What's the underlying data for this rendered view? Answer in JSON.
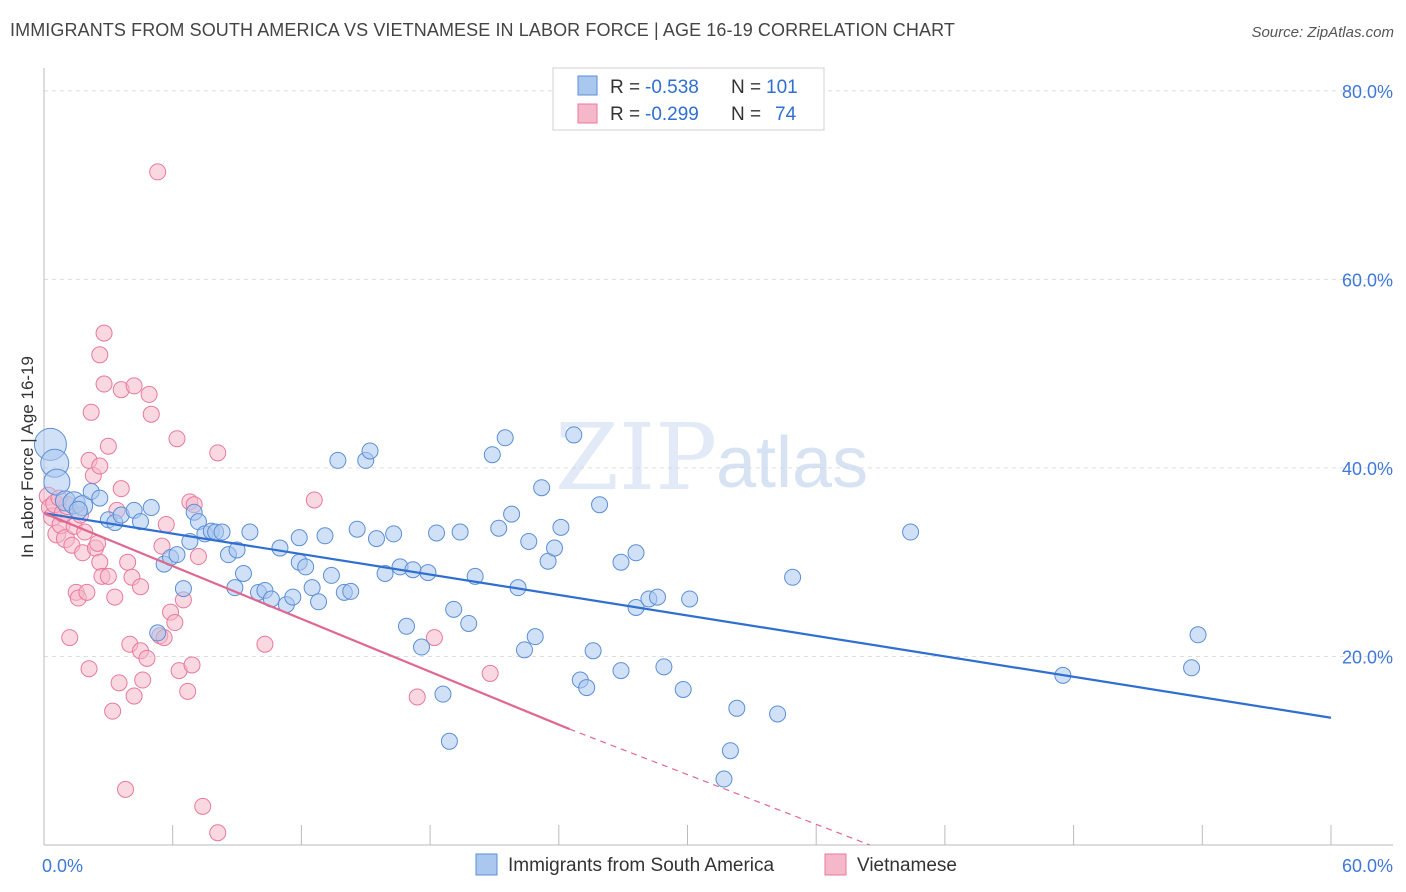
{
  "header": {
    "title": "IMMIGRANTS FROM SOUTH AMERICA VS VIETNAMESE IN LABOR FORCE | AGE 16-19 CORRELATION CHART",
    "source": "Source: ZipAtlas.com"
  },
  "watermark": {
    "zip": "ZIP",
    "atlas": "atlas"
  },
  "legend_box": {
    "rows": [
      {
        "r_label": "R =",
        "r_value": "-0.538",
        "n_label": "N =",
        "n_value": "101"
      },
      {
        "r_label": "R =",
        "r_value": "-0.299",
        "n_label": "N =",
        "n_value": "74"
      }
    ]
  },
  "bottom_legend": {
    "items": [
      {
        "label": "Immigrants from South America"
      },
      {
        "label": "Vietnamese"
      }
    ]
  },
  "colors": {
    "blue_fill": "#a9c7ef",
    "blue_stroke": "#5b8fd6",
    "blue_line": "#2f6fd0",
    "pink_fill": "#f5b8cb",
    "pink_stroke": "#e9799b",
    "pink_line": "#e06890",
    "tick_text": "#3f78d8",
    "grid": "#dddddd",
    "watermark": "#c9d9ef"
  },
  "chart_data": {
    "type": "scatter",
    "title": "IMMIGRANTS FROM SOUTH AMERICA VS VIETNAMESE IN LABOR FORCE | AGE 16-19 CORRELATION CHART",
    "xlabel": "",
    "ylabel": "In Labor Force | Age 16-19",
    "xlim": [
      0,
      60
    ],
    "ylim": [
      0,
      82
    ],
    "x_ticks": [
      0,
      6,
      12,
      18,
      24,
      30,
      36,
      42,
      48,
      54,
      60
    ],
    "x_tick_labels": [
      {
        "value": 0,
        "label": "0.0%"
      },
      {
        "value": 60,
        "label": "60.0%"
      }
    ],
    "y_ticks": [
      {
        "value": 20,
        "label": "20.0%"
      },
      {
        "value": 40,
        "label": "40.0%"
      },
      {
        "value": 60,
        "label": "60.0%"
      },
      {
        "value": 80,
        "label": "80.0%"
      }
    ],
    "series": [
      {
        "name": "Immigrants from South America",
        "r": -0.538,
        "n": 101,
        "trend": {
          "x": [
            0,
            60
          ],
          "y": [
            35.2,
            13.5
          ],
          "dashed_to": null
        },
        "points": [
          {
            "x": 0.3,
            "y": 42.5,
            "s": 16
          },
          {
            "x": 0.5,
            "y": 40.5,
            "s": 14
          },
          {
            "x": 0.6,
            "y": 38.5,
            "s": 13
          },
          {
            "x": 1.0,
            "y": 36.5,
            "s": 10
          },
          {
            "x": 1.4,
            "y": 36.3,
            "s": 11
          },
          {
            "x": 1.8,
            "y": 36.0,
            "s": 10
          },
          {
            "x": 1.6,
            "y": 35.5,
            "s": 9
          },
          {
            "x": 2.2,
            "y": 37.5,
            "s": 8
          },
          {
            "x": 2.6,
            "y": 36.8,
            "s": 8
          },
          {
            "x": 3.0,
            "y": 34.5,
            "s": 8
          },
          {
            "x": 3.3,
            "y": 34.2,
            "s": 8
          },
          {
            "x": 3.6,
            "y": 35.0,
            "s": 8
          },
          {
            "x": 4.2,
            "y": 35.5,
            "s": 8
          },
          {
            "x": 4.5,
            "y": 34.3,
            "s": 8
          },
          {
            "x": 5.0,
            "y": 35.8,
            "s": 8
          },
          {
            "x": 5.3,
            "y": 22.5,
            "s": 8
          },
          {
            "x": 5.6,
            "y": 29.8,
            "s": 8
          },
          {
            "x": 5.9,
            "y": 30.5,
            "s": 8
          },
          {
            "x": 6.2,
            "y": 30.8,
            "s": 8
          },
          {
            "x": 6.8,
            "y": 32.2,
            "s": 8
          },
          {
            "x": 6.5,
            "y": 27.2,
            "s": 8
          },
          {
            "x": 7.0,
            "y": 35.3,
            "s": 8
          },
          {
            "x": 7.2,
            "y": 34.3,
            "s": 8
          },
          {
            "x": 7.5,
            "y": 33.0,
            "s": 8
          },
          {
            "x": 7.8,
            "y": 33.3,
            "s": 8
          },
          {
            "x": 8.0,
            "y": 33.2,
            "s": 8
          },
          {
            "x": 8.3,
            "y": 33.2,
            "s": 8
          },
          {
            "x": 8.6,
            "y": 30.8,
            "s": 8
          },
          {
            "x": 8.9,
            "y": 27.3,
            "s": 8
          },
          {
            "x": 9.0,
            "y": 31.3,
            "s": 8
          },
          {
            "x": 9.3,
            "y": 28.8,
            "s": 8
          },
          {
            "x": 9.6,
            "y": 33.2,
            "s": 8
          },
          {
            "x": 10.0,
            "y": 26.8,
            "s": 8
          },
          {
            "x": 10.3,
            "y": 27.0,
            "s": 8
          },
          {
            "x": 10.6,
            "y": 26.1,
            "s": 8
          },
          {
            "x": 11.0,
            "y": 31.5,
            "s": 8
          },
          {
            "x": 11.3,
            "y": 25.5,
            "s": 8
          },
          {
            "x": 11.6,
            "y": 26.3,
            "s": 8
          },
          {
            "x": 11.9,
            "y": 30.0,
            "s": 8
          },
          {
            "x": 11.9,
            "y": 32.6,
            "s": 8
          },
          {
            "x": 12.2,
            "y": 29.5,
            "s": 8
          },
          {
            "x": 12.5,
            "y": 27.3,
            "s": 8
          },
          {
            "x": 12.8,
            "y": 25.8,
            "s": 8
          },
          {
            "x": 13.1,
            "y": 32.8,
            "s": 8
          },
          {
            "x": 13.4,
            "y": 28.6,
            "s": 8
          },
          {
            "x": 13.7,
            "y": 40.8,
            "s": 8
          },
          {
            "x": 14.0,
            "y": 26.8,
            "s": 8
          },
          {
            "x": 14.3,
            "y": 26.9,
            "s": 8
          },
          {
            "x": 14.6,
            "y": 33.5,
            "s": 8
          },
          {
            "x": 15.0,
            "y": 40.8,
            "s": 8
          },
          {
            "x": 15.2,
            "y": 41.8,
            "s": 8
          },
          {
            "x": 15.5,
            "y": 32.5,
            "s": 8
          },
          {
            "x": 15.9,
            "y": 28.8,
            "s": 8
          },
          {
            "x": 16.3,
            "y": 33.0,
            "s": 8
          },
          {
            "x": 16.6,
            "y": 29.5,
            "s": 8
          },
          {
            "x": 16.9,
            "y": 23.2,
            "s": 8
          },
          {
            "x": 17.2,
            "y": 29.2,
            "s": 8
          },
          {
            "x": 17.6,
            "y": 21.0,
            "s": 8
          },
          {
            "x": 17.9,
            "y": 28.9,
            "s": 8
          },
          {
            "x": 18.3,
            "y": 33.1,
            "s": 8
          },
          {
            "x": 18.6,
            "y": 16.0,
            "s": 8
          },
          {
            "x": 18.9,
            "y": 11.0,
            "s": 8
          },
          {
            "x": 19.1,
            "y": 25.0,
            "s": 8
          },
          {
            "x": 19.4,
            "y": 33.2,
            "s": 8
          },
          {
            "x": 19.8,
            "y": 23.5,
            "s": 8
          },
          {
            "x": 20.1,
            "y": 28.5,
            "s": 8
          },
          {
            "x": 20.9,
            "y": 41.4,
            "s": 8
          },
          {
            "x": 21.2,
            "y": 33.6,
            "s": 8
          },
          {
            "x": 21.5,
            "y": 43.2,
            "s": 8
          },
          {
            "x": 21.8,
            "y": 35.1,
            "s": 8
          },
          {
            "x": 22.1,
            "y": 27.3,
            "s": 8
          },
          {
            "x": 22.4,
            "y": 20.7,
            "s": 8
          },
          {
            "x": 22.6,
            "y": 32.2,
            "s": 8
          },
          {
            "x": 22.9,
            "y": 22.1,
            "s": 8
          },
          {
            "x": 23.2,
            "y": 37.9,
            "s": 8
          },
          {
            "x": 23.5,
            "y": 30.1,
            "s": 8
          },
          {
            "x": 23.8,
            "y": 31.5,
            "s": 8
          },
          {
            "x": 24.1,
            "y": 33.7,
            "s": 8
          },
          {
            "x": 24.7,
            "y": 43.5,
            "s": 8
          },
          {
            "x": 25.0,
            "y": 17.5,
            "s": 8
          },
          {
            "x": 25.3,
            "y": 16.7,
            "s": 8
          },
          {
            "x": 25.6,
            "y": 20.6,
            "s": 8
          },
          {
            "x": 25.9,
            "y": 36.1,
            "s": 8
          },
          {
            "x": 26.9,
            "y": 18.5,
            "s": 8
          },
          {
            "x": 26.9,
            "y": 30.0,
            "s": 8
          },
          {
            "x": 27.6,
            "y": 25.2,
            "s": 8
          },
          {
            "x": 27.6,
            "y": 31.0,
            "s": 8
          },
          {
            "x": 28.2,
            "y": 26.1,
            "s": 8
          },
          {
            "x": 28.6,
            "y": 26.3,
            "s": 8
          },
          {
            "x": 28.9,
            "y": 18.9,
            "s": 8
          },
          {
            "x": 29.8,
            "y": 16.5,
            "s": 8
          },
          {
            "x": 30.1,
            "y": 26.1,
            "s": 8
          },
          {
            "x": 31.7,
            "y": 7.0,
            "s": 8
          },
          {
            "x": 32.0,
            "y": 10.0,
            "s": 8
          },
          {
            "x": 32.3,
            "y": 14.5,
            "s": 8
          },
          {
            "x": 34.2,
            "y": 13.9,
            "s": 8
          },
          {
            "x": 34.9,
            "y": 28.4,
            "s": 8
          },
          {
            "x": 40.4,
            "y": 33.2,
            "s": 8
          },
          {
            "x": 47.5,
            "y": 18.0,
            "s": 8
          },
          {
            "x": 53.5,
            "y": 18.8,
            "s": 8
          },
          {
            "x": 53.8,
            "y": 22.3,
            "s": 8
          }
        ]
      },
      {
        "name": "Vietnamese",
        "r": -0.299,
        "n": 74,
        "trend": {
          "x": [
            0,
            24.5
          ],
          "y": [
            35.2,
            12.3
          ],
          "dashed_to": {
            "x": 38.5,
            "y": 0
          }
        },
        "points": [
          {
            "x": 0.2,
            "y": 37.0,
            "s": 9
          },
          {
            "x": 0.3,
            "y": 35.8,
            "s": 9
          },
          {
            "x": 0.4,
            "y": 34.8,
            "s": 9
          },
          {
            "x": 0.5,
            "y": 36.2,
            "s": 9
          },
          {
            "x": 0.6,
            "y": 33.0,
            "s": 9
          },
          {
            "x": 0.8,
            "y": 34.0,
            "s": 9
          },
          {
            "x": 0.9,
            "y": 35.2,
            "s": 9
          },
          {
            "x": 1.0,
            "y": 32.5,
            "s": 9
          },
          {
            "x": 1.1,
            "y": 36.0,
            "s": 9
          },
          {
            "x": 1.2,
            "y": 22.0,
            "s": 8
          },
          {
            "x": 1.3,
            "y": 31.8,
            "s": 8
          },
          {
            "x": 1.4,
            "y": 33.8,
            "s": 8
          },
          {
            "x": 1.5,
            "y": 26.8,
            "s": 8
          },
          {
            "x": 1.6,
            "y": 26.2,
            "s": 8
          },
          {
            "x": 1.8,
            "y": 31.0,
            "s": 8
          },
          {
            "x": 1.9,
            "y": 33.2,
            "s": 8
          },
          {
            "x": 2.0,
            "y": 26.8,
            "s": 8
          },
          {
            "x": 2.1,
            "y": 18.7,
            "s": 8
          },
          {
            "x": 2.1,
            "y": 40.8,
            "s": 8
          },
          {
            "x": 2.2,
            "y": 45.9,
            "s": 8
          },
          {
            "x": 2.3,
            "y": 39.2,
            "s": 8
          },
          {
            "x": 2.4,
            "y": 31.5,
            "s": 8
          },
          {
            "x": 2.6,
            "y": 40.2,
            "s": 8
          },
          {
            "x": 2.6,
            "y": 30.0,
            "s": 8
          },
          {
            "x": 2.6,
            "y": 52.0,
            "s": 8
          },
          {
            "x": 2.7,
            "y": 28.5,
            "s": 8
          },
          {
            "x": 2.8,
            "y": 48.9,
            "s": 8
          },
          {
            "x": 2.8,
            "y": 54.3,
            "s": 8
          },
          {
            "x": 3.0,
            "y": 28.5,
            "s": 8
          },
          {
            "x": 3.0,
            "y": 42.3,
            "s": 8
          },
          {
            "x": 3.2,
            "y": 14.2,
            "s": 8
          },
          {
            "x": 3.3,
            "y": 26.3,
            "s": 8
          },
          {
            "x": 3.4,
            "y": 35.5,
            "s": 8
          },
          {
            "x": 3.5,
            "y": 17.2,
            "s": 8
          },
          {
            "x": 3.6,
            "y": 37.8,
            "s": 8
          },
          {
            "x": 3.6,
            "y": 48.3,
            "s": 8
          },
          {
            "x": 3.8,
            "y": 5.9,
            "s": 8
          },
          {
            "x": 3.9,
            "y": 30.0,
            "s": 8
          },
          {
            "x": 4.0,
            "y": 21.3,
            "s": 8
          },
          {
            "x": 4.1,
            "y": 28.4,
            "s": 8
          },
          {
            "x": 4.2,
            "y": 48.7,
            "s": 8
          },
          {
            "x": 4.2,
            "y": 15.8,
            "s": 8
          },
          {
            "x": 4.5,
            "y": 27.4,
            "s": 8
          },
          {
            "x": 4.5,
            "y": 20.6,
            "s": 8
          },
          {
            "x": 4.6,
            "y": 17.5,
            "s": 8
          },
          {
            "x": 4.8,
            "y": 19.8,
            "s": 8
          },
          {
            "x": 4.9,
            "y": 47.8,
            "s": 8
          },
          {
            "x": 5.0,
            "y": 45.7,
            "s": 8
          },
          {
            "x": 5.3,
            "y": 71.4,
            "s": 8
          },
          {
            "x": 5.4,
            "y": 22.2,
            "s": 8
          },
          {
            "x": 5.5,
            "y": 31.7,
            "s": 8
          },
          {
            "x": 5.6,
            "y": 22.0,
            "s": 8
          },
          {
            "x": 5.7,
            "y": 34.0,
            "s": 8
          },
          {
            "x": 5.9,
            "y": 24.7,
            "s": 8
          },
          {
            "x": 6.1,
            "y": 23.6,
            "s": 8
          },
          {
            "x": 6.2,
            "y": 43.1,
            "s": 8
          },
          {
            "x": 6.3,
            "y": 18.5,
            "s": 8
          },
          {
            "x": 6.5,
            "y": 26.0,
            "s": 8
          },
          {
            "x": 6.7,
            "y": 16.3,
            "s": 8
          },
          {
            "x": 6.8,
            "y": 36.4,
            "s": 8
          },
          {
            "x": 6.9,
            "y": 19.1,
            "s": 8
          },
          {
            "x": 7.0,
            "y": 36.1,
            "s": 8
          },
          {
            "x": 7.2,
            "y": 30.6,
            "s": 8
          },
          {
            "x": 7.4,
            "y": 4.1,
            "s": 8
          },
          {
            "x": 8.1,
            "y": 1.3,
            "s": 8
          },
          {
            "x": 8.1,
            "y": 41.6,
            "s": 8
          },
          {
            "x": 10.3,
            "y": 21.3,
            "s": 8
          },
          {
            "x": 12.6,
            "y": 36.6,
            "s": 8
          },
          {
            "x": 17.4,
            "y": 15.7,
            "s": 8
          },
          {
            "x": 18.2,
            "y": 22.0,
            "s": 8
          },
          {
            "x": 20.8,
            "y": 18.2,
            "s": 8
          },
          {
            "x": 1.7,
            "y": 35.0,
            "s": 8
          },
          {
            "x": 0.7,
            "y": 36.8,
            "s": 8
          },
          {
            "x": 2.5,
            "y": 32.0,
            "s": 8
          }
        ]
      }
    ]
  }
}
